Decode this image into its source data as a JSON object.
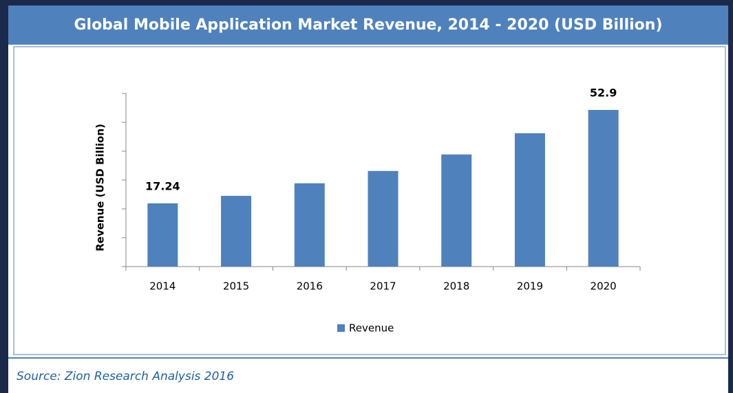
{
  "chart_data": {
    "type": "bar",
    "title": "Global Mobile Application Market Revenue, 2014 - 2020 (USD Billion)",
    "y_label": "Revenue (USD Billion)",
    "categories": [
      "2014",
      "2015",
      "2016",
      "2017",
      "2018",
      "2019",
      "2020"
    ],
    "series": [
      {
        "name": "Revenue",
        "color": "#4f81bd",
        "values": [
          17.24,
          20.1,
          24.9,
          29.6,
          35.9,
          44.0,
          52.9
        ],
        "value_labels": [
          "17.24",
          null,
          null,
          null,
          null,
          null,
          "52.9"
        ]
      }
    ],
    "ylim": [
      -6.9,
      59.2
    ],
    "source": "Source: Zion Research Analysis 2016"
  }
}
